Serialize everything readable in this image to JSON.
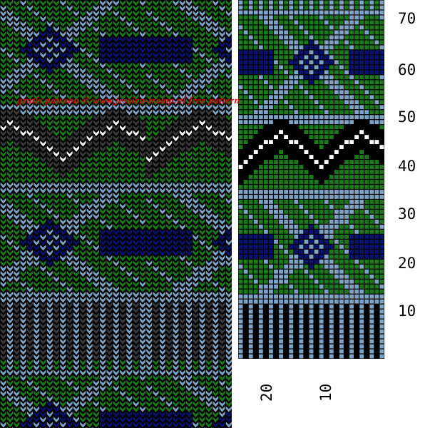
{
  "colors": {
    "black": "#000000",
    "light_blue": "#7fa3c4",
    "green": "#1c7a1c",
    "navy": "#0a1270",
    "dark_gray": "#3a3a3a",
    "white": "#ffffff",
    "watermark_red": "#e00000"
  },
  "watermark": "gratis patroon © www.jessica-tromp.nl free pattern",
  "chart": {
    "row_labels": [
      "70",
      "60",
      "50",
      "40",
      "30",
      "20",
      "10"
    ],
    "col_labels": [
      "20",
      "10"
    ]
  }
}
